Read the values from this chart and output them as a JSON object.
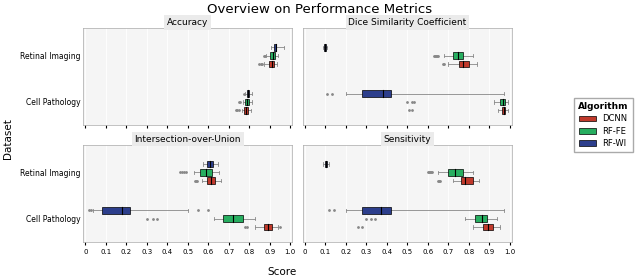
{
  "title": "Overview on Performance Metrics",
  "ylabel": "Dataset",
  "xlabel": "Score",
  "datasets": [
    "Retinal Imaging",
    "Cell Pathology"
  ],
  "algorithms": [
    "DCNN",
    "RF-FE",
    "RF-WI"
  ],
  "colors": {
    "DCNN": "#C0392B",
    "RF-FE": "#27AE60",
    "RF-WI": "#2C3E8C"
  },
  "xlim": [
    0,
    1.0
  ],
  "xticks": [
    0,
    0.1,
    0.2,
    0.3,
    0.4,
    0.5,
    0.6,
    0.7,
    0.8,
    0.9,
    1.0
  ],
  "bg_color": "#EBEBEB",
  "panel_bg": "#F5F5F5",
  "boxes": {
    "Accuracy": {
      "Retinal Imaging": {
        "RF-WI": {
          "whislo": 0.905,
          "q1": 0.92,
          "med": 0.928,
          "q3": 0.932,
          "whishi": 0.97,
          "fliers": []
        },
        "RF-FE": {
          "whislo": 0.88,
          "q1": 0.9,
          "med": 0.915,
          "q3": 0.925,
          "whishi": 0.94,
          "fliers": [
            0.875,
            0.872
          ]
        },
        "DCNN": {
          "whislo": 0.87,
          "q1": 0.895,
          "med": 0.91,
          "q3": 0.92,
          "whishi": 0.935,
          "fliers": [
            0.862,
            0.855,
            0.848
          ]
        }
      },
      "Cell Pathology": {
        "RF-WI": {
          "whislo": 0.78,
          "q1": 0.79,
          "med": 0.795,
          "q3": 0.8,
          "whishi": 0.815,
          "fliers": [
            0.775
          ]
        },
        "RF-FE": {
          "whislo": 0.77,
          "q1": 0.78,
          "med": 0.79,
          "q3": 0.8,
          "whishi": 0.815,
          "fliers": [
            0.755,
            0.75
          ]
        },
        "DCNN": {
          "whislo": 0.765,
          "q1": 0.775,
          "med": 0.785,
          "q3": 0.795,
          "whishi": 0.81,
          "fliers": [
            0.748,
            0.742,
            0.735
          ]
        }
      }
    },
    "Dice Similarity Coefficient": {
      "Retinal Imaging": {
        "RF-WI": {
          "whislo": 0.09,
          "q1": 0.095,
          "med": 0.1,
          "q3": 0.105,
          "whishi": 0.11,
          "fliers": []
        },
        "RF-FE": {
          "whislo": 0.68,
          "q1": 0.72,
          "med": 0.745,
          "q3": 0.77,
          "whishi": 0.82,
          "fliers": [
            0.63,
            0.635,
            0.64,
            0.645,
            0.65
          ]
        },
        "DCNN": {
          "whislo": 0.7,
          "q1": 0.75,
          "med": 0.77,
          "q3": 0.8,
          "whishi": 0.84,
          "fliers": [
            0.68,
            0.675
          ]
        }
      },
      "Cell Pathology": {
        "RF-WI": {
          "whislo": 0.2,
          "q1": 0.28,
          "med": 0.38,
          "q3": 0.42,
          "whishi": 0.97,
          "fliers": [
            0.11,
            0.13
          ]
        },
        "RF-FE": {
          "whislo": 0.92,
          "q1": 0.95,
          "med": 0.965,
          "q3": 0.975,
          "whishi": 0.99,
          "fliers": [
            0.5,
            0.52,
            0.53
          ]
        },
        "DCNN": {
          "whislo": 0.94,
          "q1": 0.96,
          "med": 0.97,
          "q3": 0.978,
          "whishi": 0.99,
          "fliers": [
            0.51,
            0.52
          ]
        }
      }
    },
    "Intersection-over-Union": {
      "Retinal Imaging": {
        "RF-WI": {
          "whislo": 0.575,
          "q1": 0.595,
          "med": 0.61,
          "q3": 0.625,
          "whishi": 0.645,
          "fliers": []
        },
        "RF-FE": {
          "whislo": 0.53,
          "q1": 0.56,
          "med": 0.59,
          "q3": 0.62,
          "whishi": 0.65,
          "fliers": [
            0.46,
            0.47,
            0.48,
            0.49
          ]
        },
        "DCNN": {
          "whislo": 0.57,
          "q1": 0.595,
          "med": 0.615,
          "q3": 0.635,
          "whishi": 0.66,
          "fliers": [
            0.545,
            0.54,
            0.535
          ]
        }
      },
      "Cell Pathology": {
        "RF-WI": {
          "whislo": 0.04,
          "q1": 0.08,
          "med": 0.18,
          "q3": 0.22,
          "whishi": 0.5,
          "fliers": [
            0.02,
            0.03,
            0.55,
            0.6
          ]
        },
        "RF-FE": {
          "whislo": 0.63,
          "q1": 0.67,
          "med": 0.72,
          "q3": 0.77,
          "whishi": 0.83,
          "fliers": [
            0.3,
            0.33,
            0.35
          ]
        },
        "DCNN": {
          "whislo": 0.83,
          "q1": 0.87,
          "med": 0.89,
          "q3": 0.91,
          "whishi": 0.94,
          "fliers": [
            0.78,
            0.79,
            0.95
          ]
        }
      }
    },
    "Sensitivity": {
      "Retinal Imaging": {
        "RF-WI": {
          "whislo": 0.09,
          "q1": 0.1,
          "med": 0.105,
          "q3": 0.11,
          "whishi": 0.12,
          "fliers": []
        },
        "RF-FE": {
          "whislo": 0.65,
          "q1": 0.7,
          "med": 0.73,
          "q3": 0.77,
          "whishi": 0.82,
          "fliers": [
            0.6,
            0.605,
            0.61,
            0.615,
            0.62
          ]
        },
        "DCNN": {
          "whislo": 0.72,
          "q1": 0.76,
          "med": 0.78,
          "q3": 0.82,
          "whishi": 0.85,
          "fliers": [
            0.66,
            0.655,
            0.65
          ]
        }
      },
      "Cell Pathology": {
        "RF-WI": {
          "whislo": 0.2,
          "q1": 0.28,
          "med": 0.37,
          "q3": 0.42,
          "whishi": 0.97,
          "fliers": [
            0.12,
            0.14
          ]
        },
        "RF-FE": {
          "whislo": 0.78,
          "q1": 0.83,
          "med": 0.865,
          "q3": 0.89,
          "whishi": 0.935,
          "fliers": [
            0.3,
            0.32,
            0.34
          ]
        },
        "DCNN": {
          "whislo": 0.82,
          "q1": 0.87,
          "med": 0.895,
          "q3": 0.915,
          "whishi": 0.95,
          "fliers": [
            0.26,
            0.28
          ]
        }
      }
    }
  }
}
